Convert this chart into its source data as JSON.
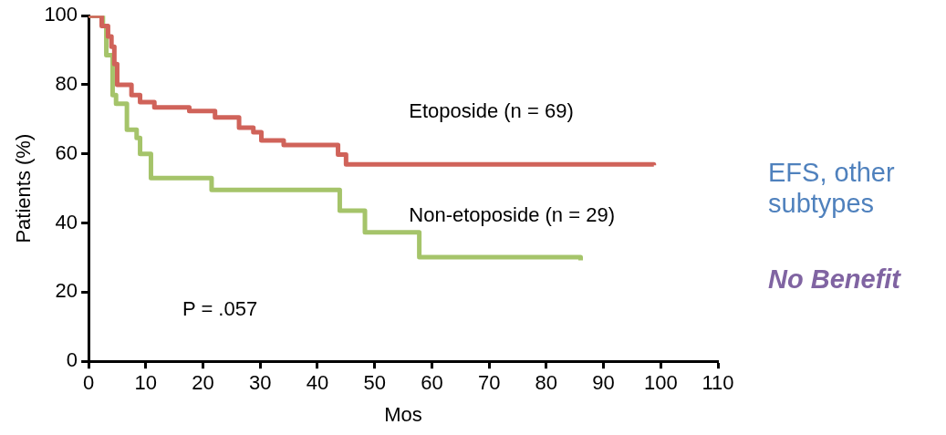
{
  "chart_data": {
    "type": "step",
    "xlabel": "Mos",
    "ylabel": "Patients (%)",
    "xlim": [
      0,
      110
    ],
    "xticks": [
      0,
      10,
      20,
      30,
      40,
      50,
      60,
      70,
      80,
      90,
      100,
      110
    ],
    "ylim": [
      0,
      100
    ],
    "yticks": [
      0,
      20,
      40,
      60,
      80,
      100
    ],
    "grid": false,
    "legend": false,
    "marker": "none",
    "series": [
      {
        "name": "Etoposide (n = 69)",
        "color": "#d0635a",
        "x": [
          0,
          1.2,
          2.3,
          3.4,
          4,
          4.5,
          5,
          7.5,
          9,
          11.5,
          17.6,
          22.1,
          26.3,
          28.8,
          30.2,
          34.1,
          43.6,
          45,
          98.8
        ],
        "values": [
          100,
          100,
          97,
          94,
          91,
          86,
          80,
          77,
          75,
          73.5,
          72.4,
          70.6,
          67.6,
          66.3,
          63.9,
          62.6,
          59.8,
          57,
          56.7
        ]
      },
      {
        "name": "Non-etoposide (n = 29)",
        "color": "#a5c46a",
        "x": [
          0,
          1.2,
          2.5,
          3.1,
          4.2,
          4.8,
          6.7,
          8.4,
          9,
          10.9,
          21.5,
          43.9,
          48.3,
          57.8,
          86
        ],
        "values": [
          100,
          100,
          97,
          88.6,
          77,
          74.5,
          67,
          64.6,
          60,
          53,
          49.6,
          43.6,
          37.3,
          30.1,
          29.2
        ]
      }
    ],
    "annotations": [
      "P = .057",
      "EFS, other subtypes",
      "No Benefit"
    ]
  }
}
